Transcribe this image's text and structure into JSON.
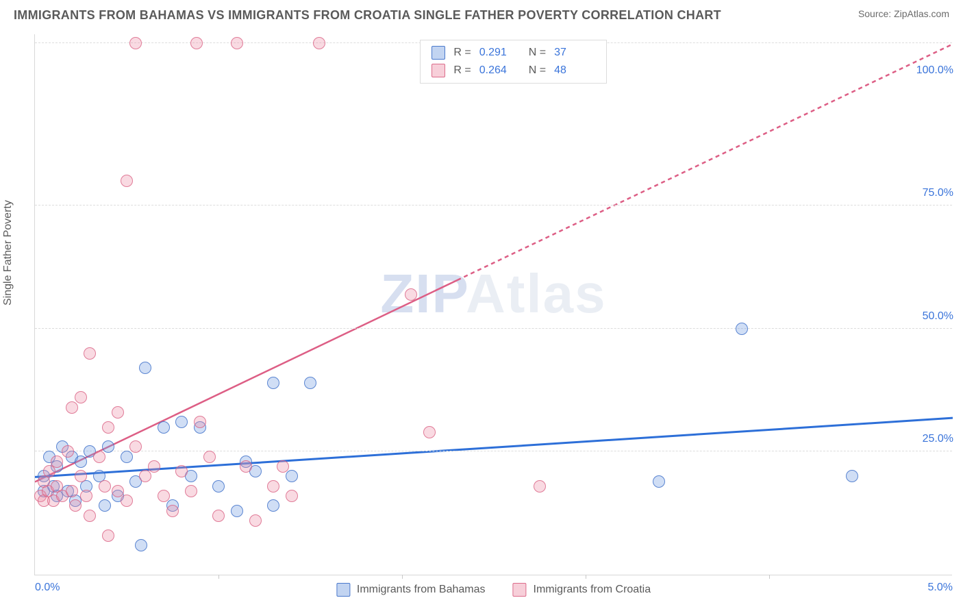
{
  "header": {
    "title": "IMMIGRANTS FROM BAHAMAS VS IMMIGRANTS FROM CROATIA SINGLE FATHER POVERTY CORRELATION CHART",
    "source": "Source: ZipAtlas.com"
  },
  "chart": {
    "type": "scatter",
    "ylabel": "Single Father Poverty",
    "watermark_a": "ZIP",
    "watermark_b": "Atlas",
    "background_color": "#ffffff",
    "grid_color": "#dcdcdc",
    "axis_color": "#d8d8d8",
    "tick_color": "#3a74da",
    "label_color": "#5a5a5a",
    "xlim": [
      0.0,
      5.0
    ],
    "ylim": [
      0.0,
      110.0
    ],
    "yticks": [
      {
        "v": 25.0,
        "label": "25.0%"
      },
      {
        "v": 50.0,
        "label": "50.0%"
      },
      {
        "v": 75.0,
        "label": "75.0%"
      },
      {
        "v": 100.0,
        "label": "100.0%"
      }
    ],
    "xticks": [
      {
        "v": 0.0,
        "label": "0.0%",
        "align": "left"
      },
      {
        "v": 5.0,
        "label": "5.0%",
        "align": "right"
      }
    ],
    "xtick_marks": [
      1.0,
      2.0,
      3.0,
      4.0
    ],
    "ygrid": [
      25.0,
      50.0,
      75.0,
      108.0
    ],
    "marker_radius": 9,
    "series": [
      {
        "name": "Immigrants from Bahamas",
        "key": "bahamas",
        "fill": "rgba(120,160,225,0.35)",
        "stroke": "rgba(60,110,200,0.8)",
        "trend_color": "#2d6fd8",
        "trend_width": 3,
        "trend_dash_extend": false,
        "R_label": "R  =",
        "R_value": "0.291",
        "N_label": "N  =",
        "N_value": "37",
        "trend": {
          "x1": 0.0,
          "y1": 20.0,
          "x2": 5.0,
          "y2": 32.0
        },
        "points": [
          [
            0.05,
            17
          ],
          [
            0.05,
            20
          ],
          [
            0.08,
            24
          ],
          [
            0.1,
            18
          ],
          [
            0.12,
            22
          ],
          [
            0.12,
            16
          ],
          [
            0.15,
            26
          ],
          [
            0.18,
            17
          ],
          [
            0.2,
            24
          ],
          [
            0.22,
            15
          ],
          [
            0.25,
            23
          ],
          [
            0.28,
            18
          ],
          [
            0.3,
            25
          ],
          [
            0.35,
            20
          ],
          [
            0.38,
            14
          ],
          [
            0.4,
            26
          ],
          [
            0.45,
            16
          ],
          [
            0.5,
            24
          ],
          [
            0.55,
            19
          ],
          [
            0.58,
            6
          ],
          [
            0.6,
            42
          ],
          [
            0.7,
            30
          ],
          [
            0.75,
            14
          ],
          [
            0.8,
            31
          ],
          [
            0.85,
            20
          ],
          [
            0.9,
            30
          ],
          [
            1.0,
            18
          ],
          [
            1.1,
            13
          ],
          [
            1.15,
            23
          ],
          [
            1.2,
            21
          ],
          [
            1.3,
            14
          ],
          [
            1.4,
            20
          ],
          [
            1.5,
            39
          ],
          [
            1.3,
            39
          ],
          [
            3.4,
            19
          ],
          [
            3.85,
            50
          ],
          [
            4.45,
            20
          ]
        ]
      },
      {
        "name": "Immigrants from Croatia",
        "key": "croatia",
        "fill": "rgba(235,140,165,0.32)",
        "stroke": "rgba(215,90,125,0.75)",
        "trend_color": "#dd5e85",
        "trend_width": 2.5,
        "trend_dash_extend": true,
        "R_label": "R  =",
        "R_value": "0.264",
        "N_label": "N  =",
        "N_value": "48",
        "trend": {
          "x1": 0.0,
          "y1": 19.0,
          "x2_solid": 2.3,
          "y2_solid": 60.0,
          "x2": 5.0,
          "y2": 108.0
        },
        "points": [
          [
            0.03,
            16
          ],
          [
            0.05,
            15
          ],
          [
            0.05,
            19
          ],
          [
            0.07,
            17
          ],
          [
            0.08,
            21
          ],
          [
            0.1,
            15
          ],
          [
            0.12,
            18
          ],
          [
            0.12,
            23
          ],
          [
            0.15,
            16
          ],
          [
            0.18,
            25
          ],
          [
            0.2,
            34
          ],
          [
            0.2,
            17
          ],
          [
            0.22,
            14
          ],
          [
            0.25,
            20
          ],
          [
            0.25,
            36
          ],
          [
            0.28,
            16
          ],
          [
            0.3,
            45
          ],
          [
            0.3,
            12
          ],
          [
            0.35,
            24
          ],
          [
            0.38,
            18
          ],
          [
            0.4,
            30
          ],
          [
            0.4,
            8
          ],
          [
            0.45,
            33
          ],
          [
            0.45,
            17
          ],
          [
            0.5,
            15
          ],
          [
            0.5,
            80
          ],
          [
            0.55,
            108
          ],
          [
            0.55,
            26
          ],
          [
            0.6,
            20
          ],
          [
            0.65,
            22
          ],
          [
            0.7,
            16
          ],
          [
            0.75,
            13
          ],
          [
            0.8,
            21
          ],
          [
            0.85,
            17
          ],
          [
            0.88,
            108
          ],
          [
            0.9,
            31
          ],
          [
            0.95,
            24
          ],
          [
            1.0,
            12
          ],
          [
            1.1,
            108
          ],
          [
            1.15,
            22
          ],
          [
            1.2,
            11
          ],
          [
            1.3,
            18
          ],
          [
            1.35,
            22
          ],
          [
            1.4,
            16
          ],
          [
            1.55,
            108
          ],
          [
            2.05,
            57
          ],
          [
            2.15,
            29
          ],
          [
            2.75,
            18
          ]
        ]
      }
    ]
  }
}
